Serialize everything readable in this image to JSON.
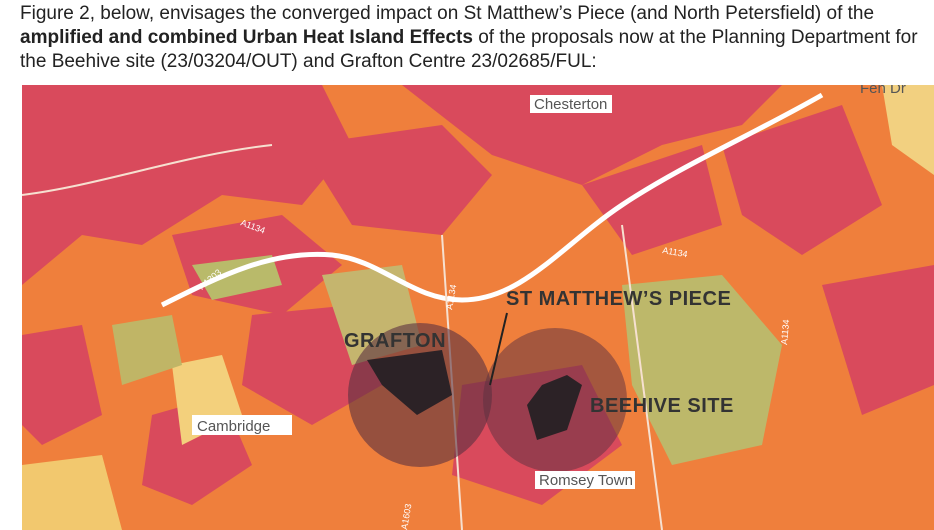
{
  "paragraph": {
    "parts": [
      "Figure 2, below, envisages the converged impact on St Matthew’s Piece (and North Petersfield) of the ",
      "amplified and combined Urban Heat Island Effects",
      " of the proposals now at the Planning Department for the Beehive site (23/03204/OUT) and Grafton Centre 23/02685/FUL:"
    ]
  },
  "map": {
    "place_labels": [
      "Chesterton",
      "Cambridge",
      "Romsey Town",
      "Fen Dr"
    ],
    "site_labels": [
      "GRAFTON",
      "ST MATTHEW’S PIECE",
      "BEEHIVE SITE"
    ],
    "road_labels": [
      "A1134",
      "A1303",
      "A1134",
      "A1134",
      "A1603",
      "A1134"
    ]
  }
}
